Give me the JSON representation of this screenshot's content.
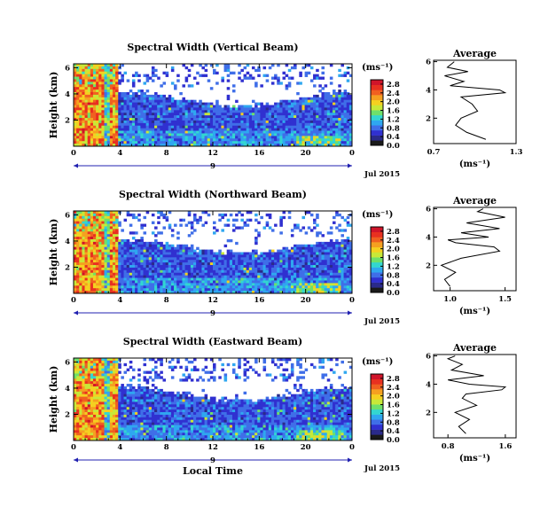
{
  "chart_data": [
    {
      "type": "heatmap",
      "title": "Spectral Width (Vertical Beam)",
      "ylabel": "Height (km)",
      "y_ticks": [
        "2",
        "4",
        "6"
      ],
      "x_ticks": [
        "0",
        "4",
        "8",
        "12",
        "16",
        "20",
        "0"
      ],
      "date_marker": "9",
      "date_label": "Jul 2015",
      "colorbar": {
        "unit": "(ms⁻¹)",
        "ticks": [
          "0.0",
          "0.4",
          "0.8",
          "1.2",
          "1.6",
          "2.0",
          "2.4",
          "2.8"
        ],
        "range": [
          0,
          3.0
        ]
      },
      "average": {
        "title": "Average",
        "xlabel": "(ms⁻¹)",
        "x_ticks": [
          "0.7",
          "1.3"
        ],
        "xlim": [
          0.7,
          1.3
        ],
        "y_ticks": [
          "2",
          "4",
          "6"
        ],
        "height_km": [
          0.5,
          1.0,
          1.5,
          2.0,
          2.5,
          3.0,
          3.5,
          3.8,
          4.0,
          4.3,
          4.6,
          5.0,
          5.3,
          5.6,
          6.0
        ],
        "width": [
          1.08,
          0.94,
          0.86,
          0.9,
          1.02,
          0.98,
          0.9,
          1.22,
          1.18,
          0.82,
          0.92,
          0.78,
          0.95,
          0.8,
          0.85
        ]
      }
    },
    {
      "type": "heatmap",
      "title": "Spectral Width (Northward Beam)",
      "ylabel": "Height (km)",
      "y_ticks": [
        "2",
        "4",
        "6"
      ],
      "x_ticks": [
        "0",
        "4",
        "8",
        "12",
        "16",
        "20",
        "0"
      ],
      "date_marker": "9",
      "date_label": "Jul 2015",
      "colorbar": {
        "unit": "(ms⁻¹)",
        "ticks": [
          "0.0",
          "0.4",
          "0.8",
          "1.2",
          "1.6",
          "2.0",
          "2.4",
          "2.8"
        ],
        "range": [
          0,
          3.0
        ]
      },
      "average": {
        "title": "Average",
        "xlabel": "(ms⁻¹)",
        "x_ticks": [
          "1.0",
          "1.5"
        ],
        "xlim": [
          0.85,
          1.6
        ],
        "y_ticks": [
          "2",
          "4",
          "6"
        ],
        "height_km": [
          0.5,
          1.0,
          1.5,
          2.0,
          2.5,
          3.0,
          3.3,
          3.6,
          3.8,
          4.0,
          4.3,
          4.6,
          5.0,
          5.4,
          5.8,
          6.0
        ],
        "width": [
          1.0,
          0.95,
          1.05,
          0.92,
          1.1,
          1.45,
          1.4,
          1.05,
          0.98,
          1.35,
          1.1,
          1.45,
          1.15,
          1.5,
          1.25,
          1.3
        ]
      }
    },
    {
      "type": "heatmap",
      "title": "Spectral Width (Eastward Beam)",
      "ylabel": "Height (km)",
      "y_ticks": [
        "2",
        "4",
        "6"
      ],
      "x_ticks": [
        "0",
        "4",
        "8",
        "12",
        "16",
        "20",
        "0"
      ],
      "date_marker": "9",
      "date_label": "Jul 2015",
      "xlabel": "Local Time",
      "colorbar": {
        "unit": "(ms⁻¹)",
        "ticks": [
          "0.0",
          "0.4",
          "0.8",
          "1.2",
          "1.6",
          "2.0",
          "2.4",
          "2.8"
        ],
        "range": [
          0,
          3.0
        ]
      },
      "average": {
        "title": "Average",
        "xlabel": "(ms⁻¹)",
        "x_ticks": [
          "0.8",
          "1.6"
        ],
        "xlim": [
          0.6,
          1.75
        ],
        "y_ticks": [
          "2",
          "4",
          "6"
        ],
        "height_km": [
          0.5,
          1.0,
          1.5,
          2.0,
          2.5,
          3.0,
          3.3,
          3.6,
          3.8,
          4.0,
          4.3,
          4.6,
          5.0,
          5.4,
          5.8,
          6.0
        ],
        "width": [
          1.05,
          0.95,
          1.1,
          0.9,
          1.2,
          1.0,
          1.05,
          1.55,
          1.6,
          1.1,
          0.8,
          1.3,
          0.85,
          1.0,
          0.8,
          0.9
        ]
      }
    }
  ],
  "colors": {
    "colormap": [
      "#1a1a1a",
      "#2a2a8a",
      "#3030d0",
      "#3f6ee8",
      "#2fa7f0",
      "#33d6d0",
      "#6ee06a",
      "#c8e838",
      "#f5d020",
      "#f5a020",
      "#f06020",
      "#e83020",
      "#d0142a"
    ],
    "date_arrow": "#2020b0"
  }
}
